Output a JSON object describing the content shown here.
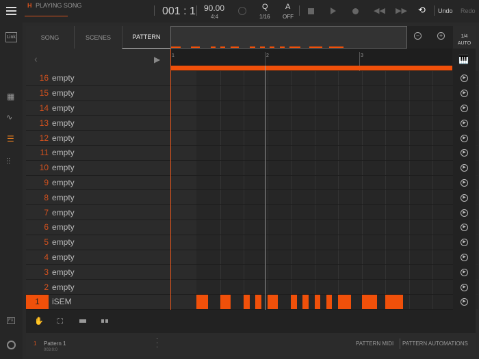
{
  "topbar": {
    "status_letter": "H",
    "status": "PLAYING SONG",
    "position": "001 : 1",
    "tempo": "90.00",
    "signature": "4:4",
    "quantize_label": "Q",
    "quantize_value": "1/16",
    "auto_label": "A",
    "auto_value": "OFF",
    "undo": "Undo",
    "redo": "Redo"
  },
  "sidebar": {
    "link": "Link",
    "fx": "FX"
  },
  "tabs": [
    {
      "label": "SONG"
    },
    {
      "label": "SCENES"
    },
    {
      "label": "PATTERN",
      "active": true
    }
  ],
  "grid_setting": {
    "line1": "1/4",
    "line2": "AUTO"
  },
  "ruler": {
    "bars": [
      "1",
      "2",
      "3"
    ]
  },
  "tracks": [
    {
      "num": "16",
      "name": "empty"
    },
    {
      "num": "15",
      "name": "empty"
    },
    {
      "num": "14",
      "name": "empty"
    },
    {
      "num": "13",
      "name": "empty"
    },
    {
      "num": "12",
      "name": "empty"
    },
    {
      "num": "11",
      "name": "empty"
    },
    {
      "num": "10",
      "name": "empty"
    },
    {
      "num": "9",
      "name": "empty"
    },
    {
      "num": "8",
      "name": "empty"
    },
    {
      "num": "7",
      "name": "empty"
    },
    {
      "num": "6",
      "name": "empty"
    },
    {
      "num": "5",
      "name": "empty"
    },
    {
      "num": "4",
      "name": "empty"
    },
    {
      "num": "3",
      "name": "empty"
    },
    {
      "num": "2",
      "name": "empty"
    },
    {
      "num": "1",
      "name": "iSEM",
      "selected": true
    }
  ],
  "notes_beats": [
    [
      0,
      0.5
    ],
    [
      1,
      0.45
    ],
    [
      2,
      0.25
    ],
    [
      2.5,
      0.25
    ],
    [
      3,
      0.45
    ],
    [
      4,
      0.25
    ],
    [
      4.5,
      0.25
    ],
    [
      5,
      0.25
    ],
    [
      5.5,
      0.25
    ],
    [
      6,
      0.55
    ],
    [
      7,
      0.65
    ],
    [
      8,
      0.75
    ]
  ],
  "loop_length_beats": 12,
  "footer": {
    "pattern_num": "1",
    "pattern_name": "Pattern 1",
    "pattern_length": "003:0:0",
    "midi": "PATTERN MIDI",
    "automations": "PATTERN AUTOMATIONS"
  },
  "colors": {
    "accent": "#f0500a"
  }
}
